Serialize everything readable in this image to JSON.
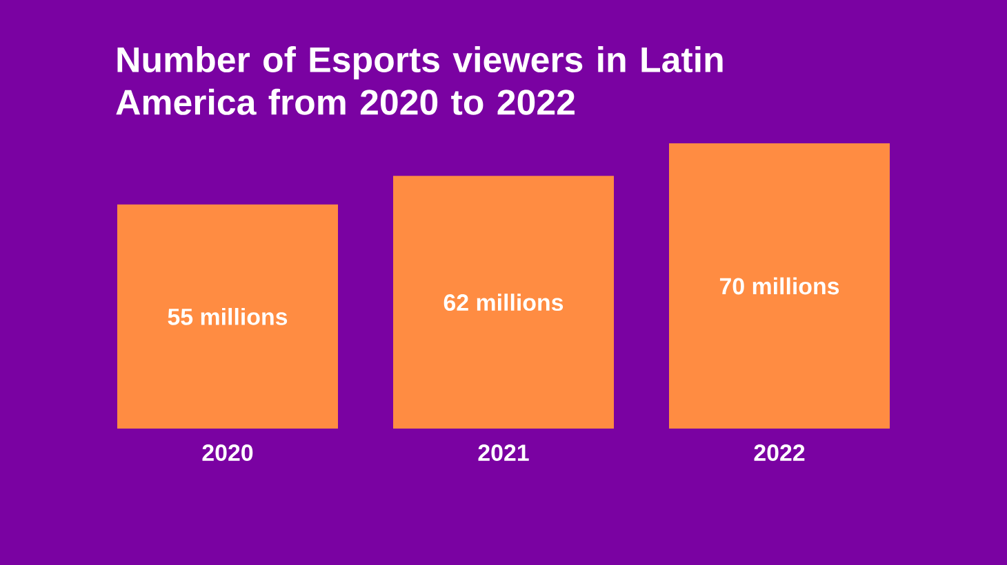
{
  "chart_data": {
    "type": "bar",
    "title": "Number of Esports viewers in Latin America from 2020 to 2022",
    "categories": [
      "2020",
      "2021",
      "2022"
    ],
    "values": [
      55,
      62,
      70
    ],
    "value_labels": [
      "55 millions",
      "62 millions",
      "70 millions"
    ],
    "color": "#ff8c42",
    "tick_labels": "x"
  }
}
